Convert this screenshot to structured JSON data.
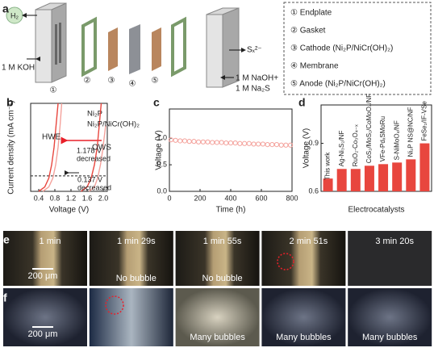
{
  "panel_labels": [
    "a",
    "b",
    "c",
    "d",
    "e",
    "f"
  ],
  "panel_a": {
    "gas": "H₂",
    "inlet": "1 M KOH",
    "outlet": "Sₓ²⁻",
    "electrolyte": [
      "1 M NaOH+",
      "1 M Na₂S"
    ],
    "numbers": [
      "①",
      "②",
      "③",
      "④",
      "⑤"
    ],
    "legend": [
      "① Endplate",
      "② Gasket",
      "③ Cathode (Ni₂P/NiCr(OH)₂)",
      "④ Membrane",
      "⑤ Anode  (Ni₂P/NiCr(OH)₂)"
    ]
  },
  "chart_data": [
    {
      "type": "line",
      "xlabel": "Voltage (V)",
      "ylabel": "Current density (mA cm⁻²)",
      "xlim": [
        0.2,
        2.1
      ],
      "xticks": [
        0.4,
        0.8,
        1.2,
        1.6,
        {
          "value": 2,
          "label": "2.0"
        }
      ],
      "ylim": [
        0,
        400
      ],
      "hline": 70,
      "annotations": [
        "HWE",
        "OWS",
        "1.178 V",
        "decreased",
        "0.137 V",
        "decreased"
      ],
      "series": [
        {
          "name": "Ni₂P",
          "color": "#f4a19b",
          "x": [
            0.5,
            0.65,
            0.75,
            0.82,
            0.88,
            0.93,
            0.97,
            null,
            1.65,
            1.78,
            1.86,
            1.93,
            1.98,
            2.02,
            2.06
          ],
          "values": [
            0,
            20,
            60,
            120,
            200,
            300,
            400,
            null,
            0,
            20,
            60,
            120,
            180,
            240,
            300
          ]
        },
        {
          "name": "Ni₂P/NiCr(OH)₂",
          "color": "#e8463e",
          "x": [
            0.4,
            0.55,
            0.65,
            0.72,
            0.78,
            0.83,
            0.88,
            null,
            1.45,
            1.6,
            1.7,
            1.78,
            1.85,
            1.9,
            1.95
          ],
          "values": [
            0,
            20,
            60,
            120,
            200,
            300,
            400,
            null,
            0,
            20,
            60,
            120,
            200,
            300,
            400
          ]
        }
      ]
    },
    {
      "type": "scatter",
      "xlabel": "Time (h)",
      "ylabel": "Voltage (V)",
      "color": "#f4a19b",
      "xlim": [
        0,
        800
      ],
      "xticks": [
        0,
        200,
        400,
        600,
        800
      ],
      "ylim": [
        0,
        1.55
      ],
      "yticks": [
        {
          "value": 0,
          "label": "0.0"
        },
        0.5,
        {
          "value": 1,
          "label": "1.0"
        }
      ],
      "x": [
        10,
        40,
        70,
        100,
        130,
        160,
        190,
        220,
        250,
        280,
        310,
        340,
        370,
        400,
        430,
        460,
        490,
        520,
        550,
        580,
        610,
        640,
        670,
        700,
        730,
        760,
        790
      ],
      "values": [
        0.97,
        0.96,
        0.95,
        0.95,
        0.94,
        0.94,
        0.93,
        0.93,
        0.93,
        0.92,
        0.92,
        0.92,
        0.91,
        0.91,
        0.91,
        0.9,
        0.9,
        0.9,
        0.89,
        0.89,
        0.89,
        0.88,
        0.88,
        0.88,
        0.87,
        0.87,
        0.87
      ]
    },
    {
      "type": "bar",
      "xlabel": "Electrocatalysts",
      "ylabel": "Voltage (V)",
      "color": "#e8463e",
      "ylim": [
        0.6,
        1.14
      ],
      "yticks": [
        0.6,
        0.9
      ],
      "categories": [
        "This work",
        "Ag-Ni₃S₂/NF",
        "RuO₂-Co₃O₄₋ₓ",
        "CoS₂/MoS₂/CoMoO₄/NF",
        "VFe-PdₓSMoRu",
        "S-NiMoO₄/NF",
        "Ni₂P NS@NC/NF",
        "FeSe₂/IF-VSe"
      ],
      "values": [
        0.68,
        0.74,
        0.74,
        0.76,
        0.77,
        0.78,
        0.8,
        0.9
      ]
    }
  ],
  "panel_e": {
    "times": [
      "1 min",
      "1 min 29s",
      "1 min 55s",
      "2 min 51s",
      "3 min 20s"
    ],
    "scale": "200 μm",
    "captions": [
      "No bubble",
      "No bubble"
    ]
  },
  "panel_f": {
    "scale": "200 μm",
    "captions": [
      "Many bubbles",
      "Many bubbles",
      "Many bubbles"
    ]
  }
}
